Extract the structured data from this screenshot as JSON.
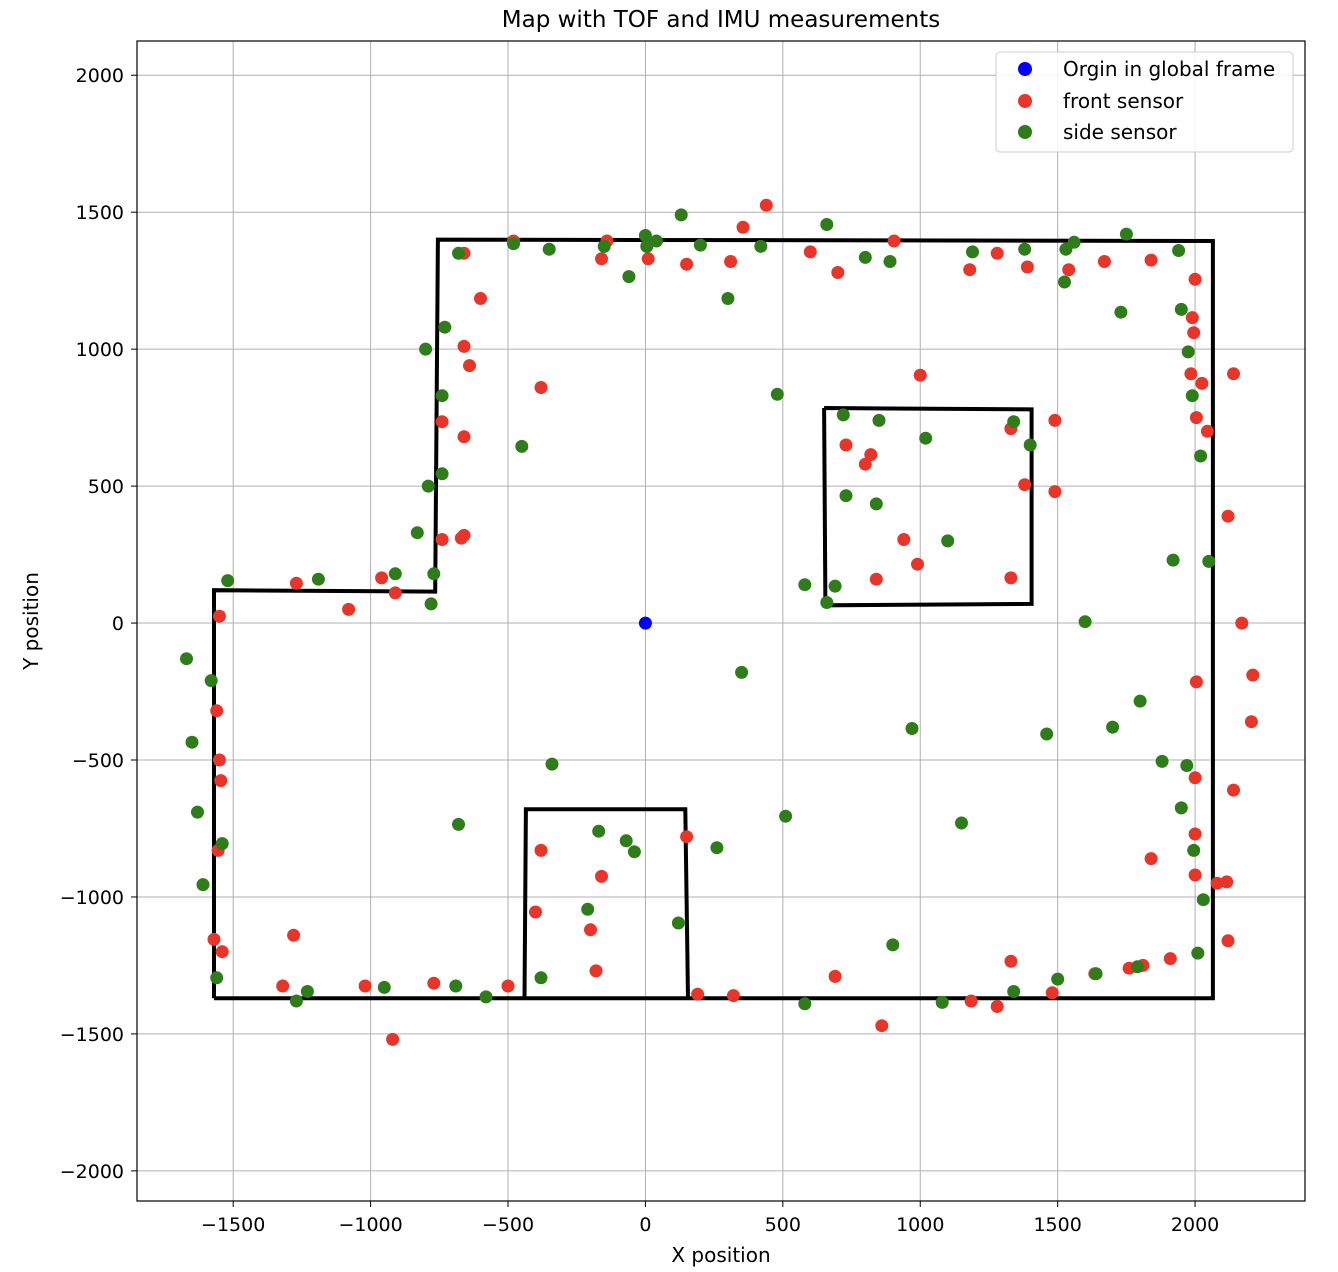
{
  "chart_data": {
    "type": "scatter",
    "title": "Map with TOF and IMU measurements",
    "xlabel": "X position",
    "ylabel": "Y position",
    "xlim": [
      -1850,
      2400
    ],
    "ylim": [
      -2110,
      2125
    ],
    "xticks": [
      -1500,
      -1000,
      -500,
      0,
      500,
      1000,
      1500,
      2000
    ],
    "yticks": [
      -2000,
      -1500,
      -1000,
      -500,
      0,
      500,
      1000,
      1500,
      2000
    ],
    "xtick_labels": [
      "−1500",
      "−1000",
      "−500",
      "0",
      "500",
      "1000",
      "1500",
      "2000"
    ],
    "ytick_labels": [
      "−2000",
      "−1500",
      "−1000",
      "−500",
      "0",
      "500",
      "1000",
      "1500",
      "2000"
    ],
    "grid": true,
    "legend_position": "top-right",
    "series": [
      {
        "name": "Orgin in global frame",
        "color": "#0000ff",
        "points": [
          [
            0,
            0
          ]
        ]
      },
      {
        "name": "front sensor",
        "color": "#e8352a",
        "points": [
          [
            -1550,
            25
          ],
          [
            -1560,
            -320
          ],
          [
            -1550,
            -500
          ],
          [
            -1545,
            -575
          ],
          [
            -1555,
            -830
          ],
          [
            -1570,
            -1155
          ],
          [
            -1540,
            -1200
          ],
          [
            -1270,
            145
          ],
          [
            -1080,
            50
          ],
          [
            -960,
            165
          ],
          [
            -910,
            110
          ],
          [
            -1280,
            -1140
          ],
          [
            -1320,
            -1325
          ],
          [
            -1020,
            -1325
          ],
          [
            -770,
            -1315
          ],
          [
            -920,
            -1520
          ],
          [
            -500,
            -1325
          ],
          [
            -480,
            1395
          ],
          [
            -660,
            1350
          ],
          [
            -600,
            1185
          ],
          [
            -660,
            1010
          ],
          [
            -640,
            940
          ],
          [
            -740,
            735
          ],
          [
            -660,
            680
          ],
          [
            -740,
            305
          ],
          [
            -670,
            310
          ],
          [
            -660,
            320
          ],
          [
            -380,
            860
          ],
          [
            -160,
            1330
          ],
          [
            -140,
            1395
          ],
          [
            10,
            1330
          ],
          [
            150,
            1310
          ],
          [
            310,
            1320
          ],
          [
            355,
            1445
          ],
          [
            440,
            1525
          ],
          [
            600,
            1355
          ],
          [
            700,
            1280
          ],
          [
            905,
            1395
          ],
          [
            1180,
            1290
          ],
          [
            1280,
            1350
          ],
          [
            1390,
            1300
          ],
          [
            1540,
            1290
          ],
          [
            1670,
            1320
          ],
          [
            1840,
            1325
          ],
          [
            2000,
            1255
          ],
          [
            1990,
            1115
          ],
          [
            1995,
            1060
          ],
          [
            1985,
            910
          ],
          [
            2025,
            875
          ],
          [
            2005,
            750
          ],
          [
            2045,
            700
          ],
          [
            2140,
            910
          ],
          [
            1000,
            905
          ],
          [
            730,
            650
          ],
          [
            820,
            615
          ],
          [
            800,
            580
          ],
          [
            940,
            305
          ],
          [
            990,
            215
          ],
          [
            840,
            160
          ],
          [
            1330,
            165
          ],
          [
            1330,
            710
          ],
          [
            1490,
            740
          ],
          [
            1380,
            505
          ],
          [
            1490,
            480
          ],
          [
            2120,
            390
          ],
          [
            2170,
            0
          ],
          [
            2210,
            -190
          ],
          [
            2005,
            -215
          ],
          [
            2205,
            -360
          ],
          [
            2000,
            -565
          ],
          [
            2140,
            -610
          ],
          [
            2000,
            -770
          ],
          [
            1840,
            -860
          ],
          [
            2000,
            -920
          ],
          [
            2080,
            -950
          ],
          [
            2115,
            -945
          ],
          [
            2120,
            -1160
          ],
          [
            1910,
            -1225
          ],
          [
            1810,
            -1250
          ],
          [
            1760,
            -1260
          ],
          [
            1635,
            -1280
          ],
          [
            1330,
            -1235
          ],
          [
            1480,
            -1350
          ],
          [
            1185,
            -1380
          ],
          [
            1280,
            -1400
          ],
          [
            860,
            -1470
          ],
          [
            690,
            -1290
          ],
          [
            320,
            -1360
          ],
          [
            190,
            -1355
          ],
          [
            150,
            -780
          ],
          [
            -380,
            -830
          ],
          [
            -160,
            -925
          ],
          [
            -400,
            -1055
          ],
          [
            -200,
            -1120
          ],
          [
            -180,
            -1270
          ]
        ]
      },
      {
        "name": "side sensor",
        "color": "#2e7d1a",
        "points": [
          [
            -1520,
            155
          ],
          [
            -1670,
            -130
          ],
          [
            -1580,
            -210
          ],
          [
            -1650,
            -435
          ],
          [
            -1630,
            -690
          ],
          [
            -1540,
            -805
          ],
          [
            -1610,
            -955
          ],
          [
            -1560,
            -1295
          ],
          [
            -1270,
            -1380
          ],
          [
            -1230,
            -1345
          ],
          [
            -950,
            -1330
          ],
          [
            -690,
            -1325
          ],
          [
            -580,
            -1365
          ],
          [
            -380,
            -1295
          ],
          [
            -1190,
            160
          ],
          [
            -910,
            180
          ],
          [
            -780,
            70
          ],
          [
            -770,
            180
          ],
          [
            -830,
            330
          ],
          [
            -790,
            500
          ],
          [
            -740,
            545
          ],
          [
            -740,
            830
          ],
          [
            -800,
            1000
          ],
          [
            -730,
            1080
          ],
          [
            -680,
            1350
          ],
          [
            -680,
            -735
          ],
          [
            -450,
            645
          ],
          [
            -340,
            -515
          ],
          [
            -480,
            1385
          ],
          [
            -350,
            1365
          ],
          [
            -150,
            1375
          ],
          [
            -60,
            1265
          ],
          [
            0,
            1415
          ],
          [
            5,
            1375
          ],
          [
            40,
            1395
          ],
          [
            130,
            1490
          ],
          [
            200,
            1380
          ],
          [
            300,
            1185
          ],
          [
            420,
            1375
          ],
          [
            660,
            1455
          ],
          [
            800,
            1335
          ],
          [
            890,
            1320
          ],
          [
            1190,
            1355
          ],
          [
            1380,
            1365
          ],
          [
            1525,
            1245
          ],
          [
            1530,
            1365
          ],
          [
            1560,
            1390
          ],
          [
            1730,
            1135
          ],
          [
            1750,
            1420
          ],
          [
            1940,
            1360
          ],
          [
            1950,
            1145
          ],
          [
            1975,
            990
          ],
          [
            1990,
            830
          ],
          [
            2020,
            610
          ],
          [
            2050,
            225
          ],
          [
            1920,
            230
          ],
          [
            1600,
            5
          ],
          [
            480,
            835
          ],
          [
            720,
            760
          ],
          [
            850,
            740
          ],
          [
            1020,
            675
          ],
          [
            1340,
            735
          ],
          [
            1400,
            650
          ],
          [
            730,
            465
          ],
          [
            840,
            435
          ],
          [
            1100,
            300
          ],
          [
            580,
            140
          ],
          [
            690,
            135
          ],
          [
            660,
            75
          ],
          [
            350,
            -180
          ],
          [
            970,
            -385
          ],
          [
            1460,
            -405
          ],
          [
            1700,
            -380
          ],
          [
            1800,
            -285
          ],
          [
            1880,
            -505
          ],
          [
            1970,
            -520
          ],
          [
            1950,
            -675
          ],
          [
            1995,
            -830
          ],
          [
            2030,
            -1010
          ],
          [
            2010,
            -1205
          ],
          [
            1790,
            -1255
          ],
          [
            1640,
            -1280
          ],
          [
            1500,
            -1300
          ],
          [
            1340,
            -1345
          ],
          [
            1080,
            -1385
          ],
          [
            900,
            -1175
          ],
          [
            580,
            -1390
          ],
          [
            1150,
            -730
          ],
          [
            510,
            -705
          ],
          [
            260,
            -820
          ],
          [
            120,
            -1095
          ],
          [
            -170,
            -760
          ],
          [
            -70,
            -795
          ],
          [
            -40,
            -835
          ],
          [
            -210,
            -1045
          ]
        ]
      }
    ],
    "walls": [
      [
        [
          -1570,
          -1370
        ],
        [
          2065,
          -1370
        ],
        [
          2065,
          1395
        ],
        [
          -755,
          1400
        ],
        [
          -765,
          115
        ],
        [
          -1570,
          120
        ],
        [
          -1570,
          -1370
        ]
      ],
      [
        [
          -440,
          -1370
        ],
        [
          -435,
          -680
        ],
        [
          145,
          -680
        ],
        [
          155,
          -1370
        ]
      ],
      [
        [
          650,
          785
        ],
        [
          1405,
          780
        ],
        [
          1405,
          70
        ],
        [
          655,
          65
        ],
        [
          650,
          785
        ]
      ]
    ]
  }
}
